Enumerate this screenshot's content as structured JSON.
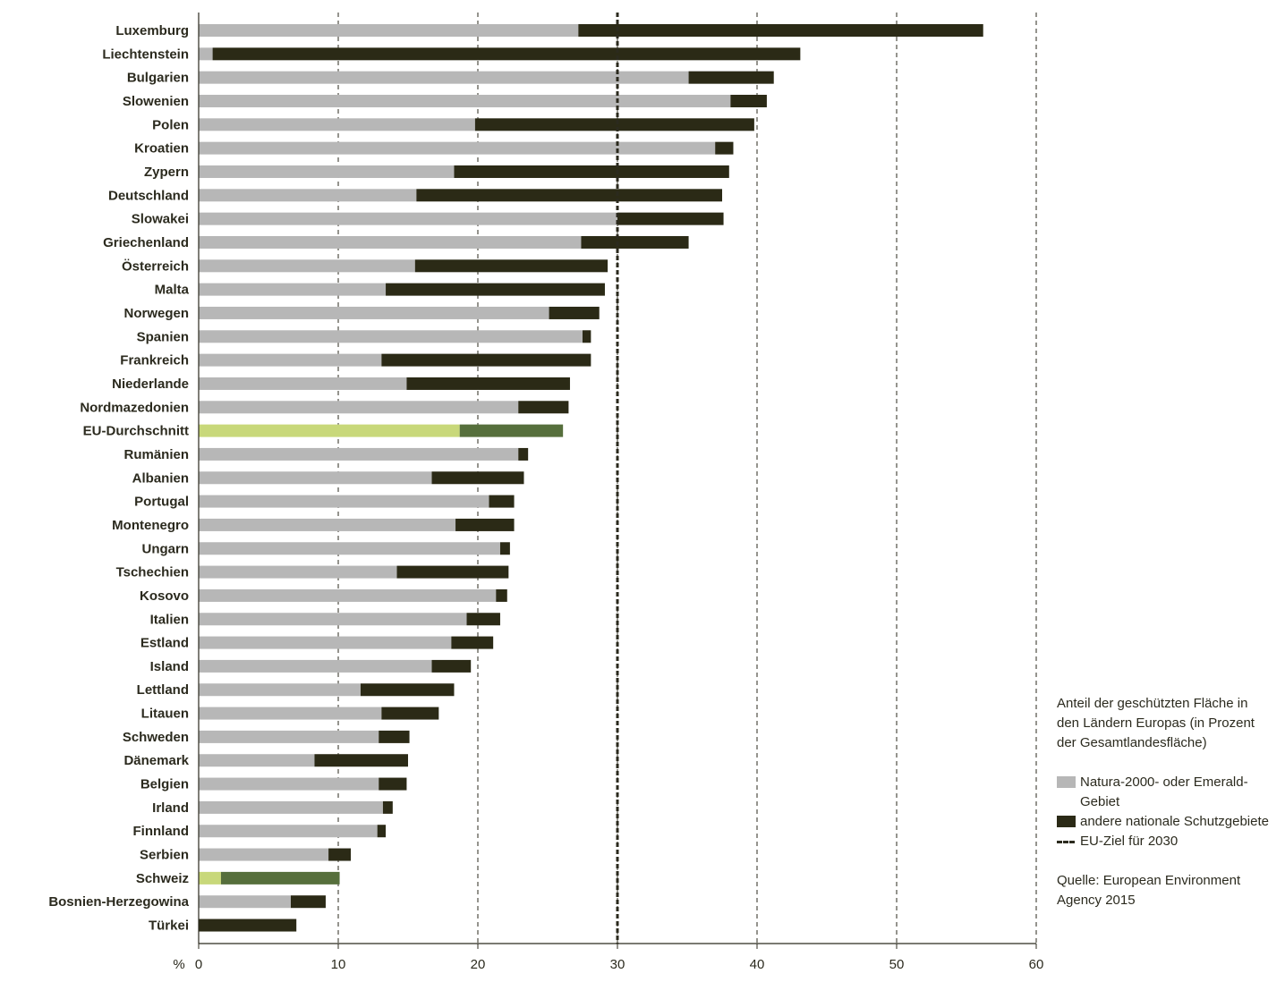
{
  "chart_data": {
    "type": "bar",
    "orientation": "horizontal",
    "stacked": true,
    "categories": [
      "Luxemburg",
      "Liechtenstein",
      "Bulgarien",
      "Slowenien",
      "Polen",
      "Kroatien",
      "Zypern",
      "Deutschland",
      "Slowakei",
      "Griechenland",
      "Österreich",
      "Malta",
      "Norwegen",
      "Spanien",
      "Frankreich",
      "Niederlande",
      "Nordmazedonien",
      "EU-Durchschnitt",
      "Rumänien",
      "Albanien",
      "Portugal",
      "Montenegro",
      "Ungarn",
      "Tschechien",
      "Kosovo",
      "Italien",
      "Estland",
      "Island",
      "Lettland",
      "Litauen",
      "Schweden",
      "Dänemark",
      "Belgien",
      "Irland",
      "Finnland",
      "Serbien",
      "Schweiz",
      "Bosnien-Herzegowina",
      "Türkei"
    ],
    "series": [
      {
        "name": "Natura-2000- oder Emerald-Gebiet",
        "values": [
          27.2,
          1.0,
          35.1,
          38.1,
          19.8,
          37.0,
          18.3,
          15.6,
          30.0,
          27.4,
          15.5,
          13.4,
          25.1,
          27.5,
          13.1,
          14.9,
          22.9,
          18.7,
          22.9,
          16.7,
          20.8,
          18.4,
          21.6,
          14.2,
          21.3,
          19.2,
          18.1,
          16.7,
          11.6,
          13.1,
          12.9,
          8.3,
          12.9,
          13.2,
          12.8,
          9.3,
          1.6,
          6.6,
          0
        ],
        "color": "#b7b7b7"
      },
      {
        "name": "andere nationale Schutzgebiete",
        "values": [
          29.0,
          42.1,
          6.1,
          2.6,
          20.0,
          1.3,
          19.7,
          21.9,
          7.6,
          7.7,
          13.8,
          15.7,
          3.6,
          0.6,
          15.0,
          11.7,
          3.6,
          7.4,
          0.7,
          6.6,
          1.8,
          4.2,
          0.7,
          8.0,
          0.8,
          2.4,
          3.0,
          2.8,
          6.7,
          4.1,
          2.2,
          6.7,
          2.0,
          0.7,
          0.6,
          1.6,
          8.5,
          2.5,
          7.0
        ],
        "color": "#2b2a16"
      }
    ],
    "highlight": {
      "categories": [
        "EU-Durchschnitt",
        "Schweiz"
      ],
      "colors": [
        "#c8d87a",
        "#566f3c"
      ]
    },
    "xlabel": "%",
    "xlim": [
      0,
      60
    ],
    "xticks": [
      0,
      10,
      20,
      30,
      40,
      50,
      60
    ],
    "target_line": {
      "label": "EU-Ziel für 2030",
      "value": 30
    },
    "grid": "vertical dashed",
    "legend_position": "bottom-right"
  },
  "legend": {
    "title": "Anteil der geschützten Fläche in den Ländern Europas (in Prozent der Gesamtlandesfläche)",
    "natura_label": "Natura-2000- oder Emerald-Gebiet",
    "national_label": "andere nationale Schutzgebiete",
    "target_label": "EU-Ziel für 2030",
    "source": "Quelle: European Environment Agency 2015"
  }
}
